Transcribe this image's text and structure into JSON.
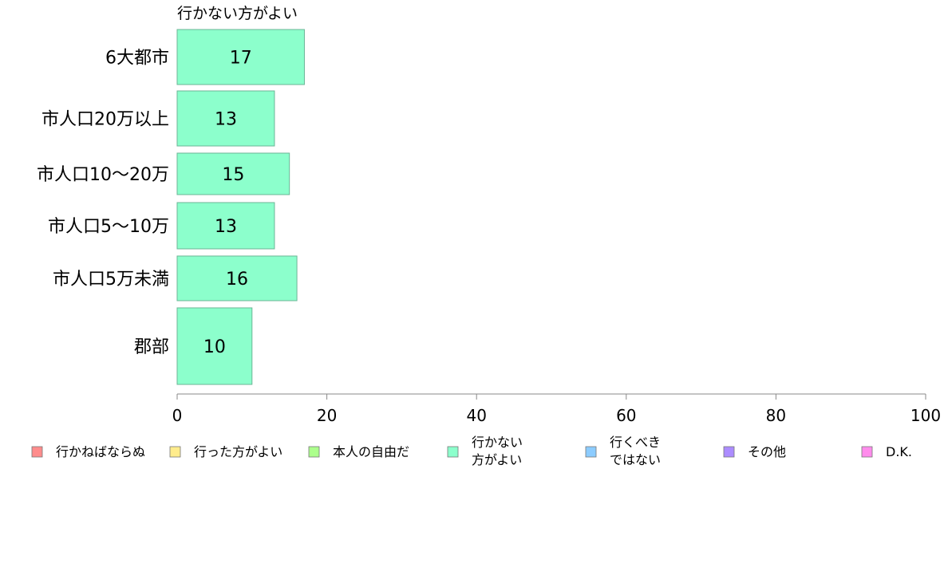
{
  "chart_data": {
    "type": "bar",
    "orientation": "horizontal",
    "title": "行かない方がよい",
    "categories": [
      "6大都市",
      "市人口20万以上",
      "市人口10〜20万",
      "市人口5〜10万",
      "市人口5万未満",
      "郡部"
    ],
    "series": [
      {
        "name": "行かない方がよい",
        "values": [
          17,
          13,
          15,
          13,
          16,
          10
        ],
        "color": "#8cffcc"
      }
    ],
    "data_labels": [
      "17",
      "13",
      "15",
      "13",
      "16",
      "10"
    ],
    "xlim": [
      0,
      100
    ],
    "x_ticks": [
      0,
      20,
      40,
      60,
      80,
      100
    ],
    "x_tick_labels": [
      "0",
      "20",
      "40",
      "60",
      "80",
      "100"
    ],
    "grid": false,
    "legend_position": "bottom",
    "legend": [
      {
        "label": "行かねばならぬ",
        "color": "#ff8c8c"
      },
      {
        "label": "行った方がよい",
        "color": "#ffec8c"
      },
      {
        "label": "本人の自由だ",
        "color": "#acff8c"
      },
      {
        "label": "行かない\n方がよい",
        "color": "#8cffcc"
      },
      {
        "label": "行くべき\nではない",
        "color": "#8cccff"
      },
      {
        "label": "その他",
        "color": "#ac8cff"
      },
      {
        "label": "D.K.",
        "color": "#ff8cec"
      }
    ]
  }
}
